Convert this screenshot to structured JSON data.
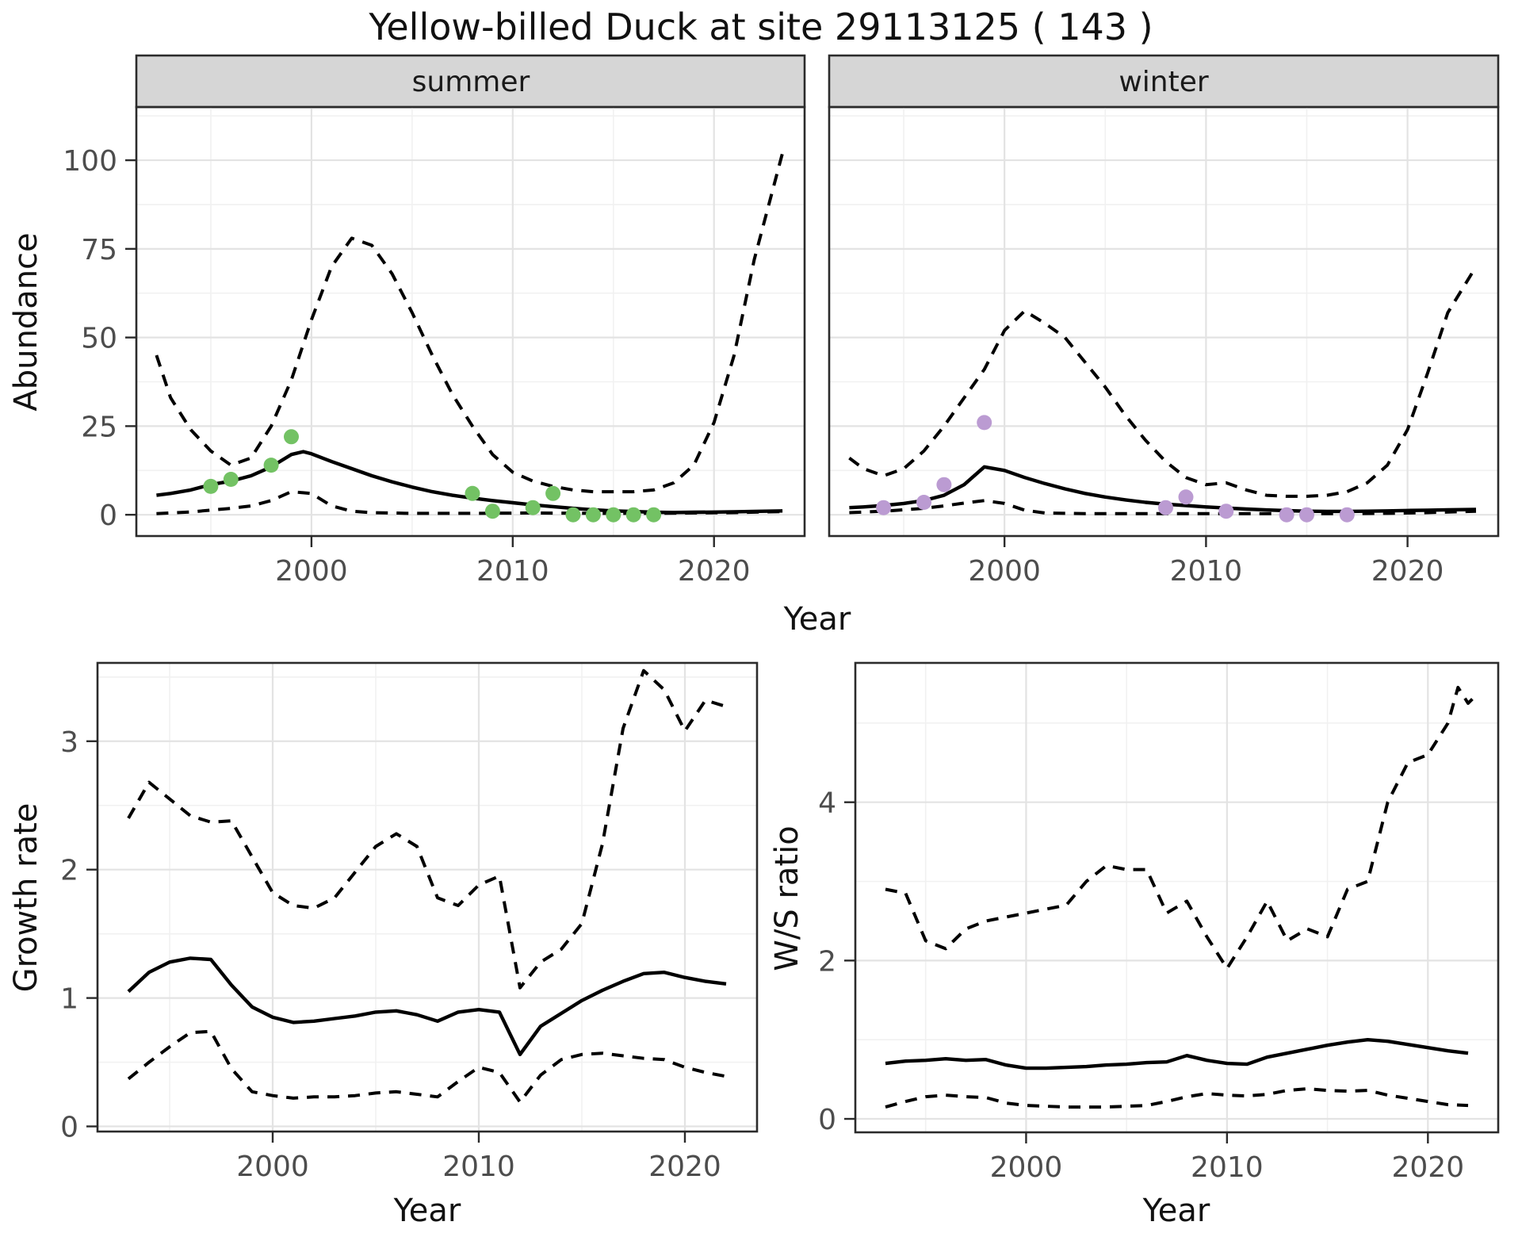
{
  "title": "Yellow-billed Duck at site 29113125 ( 143 )",
  "labels": {
    "abundance": "Abundance",
    "year": "Year",
    "growth_rate": "Growth rate",
    "ws_ratio": "W/S ratio"
  },
  "facets": {
    "summer": "summer",
    "winter": "winter"
  },
  "colors": {
    "summer_point": "#73C264",
    "winter_point": "#BB9BD2",
    "line": "#000000",
    "strip_fill": "#D6D6D6",
    "grid_major": "#E3E3E3",
    "grid_minor": "#F1F1F1",
    "panel_border": "#2B2B2B",
    "axis_text": "#4D4D4D"
  },
  "chart_data": [
    {
      "type": "line",
      "facet": "summer",
      "xlabel": "Year",
      "ylabel": "Abundance",
      "xlim": [
        1991.3,
        2024.5
      ],
      "ylim": [
        -6,
        115
      ],
      "x_ticks": [
        2000,
        2010,
        2020
      ],
      "x_minor": [
        1995,
        2005,
        2015
      ],
      "y_ticks": [
        0,
        25,
        50,
        75,
        100
      ],
      "y_minor": [
        12.5,
        37.5,
        62.5,
        87.5,
        112.5
      ],
      "grid": true,
      "point_color": "#73C264",
      "points": [
        [
          1995,
          8
        ],
        [
          1996,
          10
        ],
        [
          1998,
          14
        ],
        [
          1999,
          22
        ],
        [
          2008,
          6
        ],
        [
          2009,
          1
        ],
        [
          2011,
          2
        ],
        [
          2012,
          6
        ],
        [
          2013,
          0
        ],
        [
          2014,
          0
        ],
        [
          2015,
          0
        ],
        [
          2016,
          0
        ],
        [
          2017,
          0
        ]
      ],
      "series": [
        {
          "name": "mean",
          "line": "solid",
          "x": [
            1992.3,
            1993,
            1994,
            1995,
            1996,
            1997,
            1998,
            1999,
            1999.6,
            2000,
            2001,
            2002,
            2003,
            2004,
            2005,
            2006,
            2007,
            2008,
            2009,
            2010,
            2011,
            2012,
            2013,
            2014,
            2015,
            2016,
            2017,
            2018,
            2019,
            2020,
            2021,
            2022,
            2023.4
          ],
          "y": [
            5.5,
            6,
            7,
            8.5,
            9.5,
            11,
            13.5,
            17,
            17.8,
            17.2,
            15,
            13,
            11,
            9.3,
            7.8,
            6.5,
            5.5,
            4.7,
            4,
            3.4,
            2.8,
            2.3,
            1.8,
            1.4,
            1.1,
            0.9,
            0.7,
            0.65,
            0.7,
            0.75,
            0.85,
            0.95,
            1.1
          ]
        },
        {
          "name": "upper_ci",
          "line": "dashed",
          "x": [
            1992.3,
            1993,
            1994,
            1995,
            1996,
            1997,
            1998,
            1999,
            2000,
            2001,
            2002,
            2003,
            2004,
            2005,
            2006,
            2007,
            2008,
            2009,
            2010,
            2011,
            2012,
            2013,
            2014,
            2015,
            2016,
            2017,
            2018,
            2019,
            2020,
            2021,
            2022,
            2023.4
          ],
          "y": [
            45,
            33,
            24,
            18,
            14,
            16,
            25,
            38,
            55,
            70,
            78,
            76,
            68,
            57,
            45,
            34,
            25,
            17,
            12,
            9.5,
            8,
            7,
            6.5,
            6.5,
            6.5,
            7,
            9,
            14,
            26,
            45,
            72,
            102
          ]
        },
        {
          "name": "lower_ci",
          "line": "dashed",
          "x": [
            1992.3,
            1994,
            1996,
            1997,
            1998,
            1999,
            2000,
            2001,
            2002,
            2003,
            2005,
            2008,
            2011,
            2014,
            2017,
            2019,
            2021,
            2023.4
          ],
          "y": [
            0.3,
            0.8,
            1.8,
            2.5,
            4,
            6.5,
            6,
            2.5,
            1,
            0.6,
            0.4,
            0.4,
            0.5,
            0.4,
            0.4,
            0.5,
            0.6,
            0.9
          ]
        }
      ]
    },
    {
      "type": "line",
      "facet": "winter",
      "xlabel": "Year",
      "ylabel": "Abundance",
      "xlim": [
        1991.3,
        2024.5
      ],
      "ylim": [
        -6,
        115
      ],
      "x_ticks": [
        2000,
        2010,
        2020
      ],
      "x_minor": [
        1995,
        2005,
        2015
      ],
      "y_ticks": [
        0,
        25,
        50,
        75,
        100
      ],
      "y_minor": [
        12.5,
        37.5,
        62.5,
        87.5,
        112.5
      ],
      "grid": true,
      "point_color": "#BB9BD2",
      "points": [
        [
          1994,
          2
        ],
        [
          1996,
          3.5
        ],
        [
          1997,
          8.5
        ],
        [
          1999,
          26
        ],
        [
          2008,
          2
        ],
        [
          2009,
          5
        ],
        [
          2011,
          1
        ],
        [
          2014,
          0
        ],
        [
          2015,
          0
        ],
        [
          2017,
          0
        ]
      ],
      "series": [
        {
          "name": "mean",
          "line": "solid",
          "x": [
            1992.3,
            1993,
            1994,
            1995,
            1996,
            1997,
            1998,
            1999,
            2000,
            2001,
            2002,
            2003,
            2004,
            2005,
            2006,
            2007,
            2008,
            2009,
            2010,
            2011,
            2012,
            2013,
            2014,
            2015,
            2016,
            2017,
            2018,
            2019,
            2020,
            2021,
            2022,
            2023.4
          ],
          "y": [
            2,
            2.2,
            2.6,
            3.2,
            4,
            5.5,
            8.5,
            13.5,
            12.5,
            10.5,
            8.8,
            7.3,
            6,
            5,
            4.2,
            3.5,
            3,
            2.6,
            2.2,
            1.9,
            1.6,
            1.35,
            1.15,
            1,
            0.95,
            0.95,
            1,
            1.1,
            1.2,
            1.3,
            1.4,
            1.5
          ]
        },
        {
          "name": "upper_ci",
          "line": "dashed",
          "x": [
            1992.3,
            1993,
            1994,
            1995,
            1996,
            1997,
            1998,
            1999,
            2000,
            2001,
            2002,
            2003,
            2004,
            2005,
            2006,
            2007,
            2008,
            2009,
            2010,
            2011,
            2012,
            2013,
            2014,
            2015,
            2016,
            2017,
            2018,
            2019,
            2020,
            2021,
            2022,
            2023.4
          ],
          "y": [
            16,
            13,
            11,
            13,
            18,
            25,
            33,
            41,
            52,
            57.5,
            54,
            50,
            43,
            36,
            28,
            21,
            15,
            10.5,
            8.5,
            9,
            7,
            5.5,
            5.2,
            5.2,
            5.5,
            6.5,
            9,
            14,
            24,
            40,
            57,
            70
          ]
        },
        {
          "name": "lower_ci",
          "line": "dashed",
          "x": [
            1992.3,
            1994,
            1996,
            1997,
            1998,
            1999,
            2000,
            2001,
            2002,
            2004,
            2008,
            2012,
            2016,
            2019,
            2021,
            2023.4
          ],
          "y": [
            0.6,
            1,
            1.8,
            2.5,
            3.3,
            4,
            3.2,
            1.3,
            0.5,
            0.3,
            0.3,
            0.3,
            0.3,
            0.4,
            0.6,
            1
          ]
        }
      ]
    },
    {
      "type": "line",
      "facet": null,
      "xlabel": "Year",
      "ylabel": "Growth rate",
      "xlim": [
        1991.5,
        2023.5
      ],
      "ylim": [
        -0.04,
        3.61
      ],
      "x_ticks": [
        2000,
        2010,
        2020
      ],
      "x_minor": [
        1995,
        2005,
        2015
      ],
      "y_ticks": [
        0,
        1,
        2,
        3
      ],
      "y_minor": [
        0.5,
        1.5,
        2.5,
        3.5
      ],
      "grid": true,
      "series": [
        {
          "name": "mean",
          "line": "solid",
          "x": [
            1993,
            1994,
            1995,
            1996,
            1997,
            1998,
            1999,
            2000,
            2001,
            2002,
            2003,
            2004,
            2005,
            2006,
            2007,
            2008,
            2009,
            2010,
            2011,
            2012,
            2013,
            2014,
            2015,
            2016,
            2017,
            2018,
            2019,
            2020,
            2021,
            2022
          ],
          "y": [
            1.05,
            1.2,
            1.28,
            1.31,
            1.3,
            1.1,
            0.93,
            0.85,
            0.81,
            0.82,
            0.84,
            0.86,
            0.89,
            0.9,
            0.87,
            0.82,
            0.89,
            0.91,
            0.89,
            0.56,
            0.78,
            0.88,
            0.98,
            1.06,
            1.13,
            1.19,
            1.2,
            1.16,
            1.13,
            1.11
          ]
        },
        {
          "name": "upper_ci",
          "line": "dashed",
          "x": [
            1993,
            1994,
            1995,
            1996,
            1997,
            1998,
            1999,
            2000,
            2001,
            2002,
            2003,
            2004,
            2005,
            2006,
            2007,
            2008,
            2009,
            2010,
            2011,
            2012,
            2013,
            2014,
            2015,
            2016,
            2017,
            2018,
            2019,
            2020,
            2021,
            2022
          ],
          "y": [
            2.4,
            2.68,
            2.55,
            2.42,
            2.37,
            2.38,
            2.1,
            1.82,
            1.72,
            1.7,
            1.78,
            1.98,
            2.18,
            2.28,
            2.18,
            1.78,
            1.72,
            1.88,
            1.95,
            1.08,
            1.28,
            1.38,
            1.58,
            2.2,
            3.1,
            3.55,
            3.4,
            3.08,
            3.32,
            3.27
          ]
        },
        {
          "name": "lower_ci",
          "line": "dashed",
          "x": [
            1993,
            1994,
            1995,
            1996,
            1997,
            1998,
            1999,
            2000,
            2001,
            2002,
            2003,
            2004,
            2005,
            2006,
            2007,
            2008,
            2009,
            2010,
            2011,
            2012,
            2013,
            2014,
            2015,
            2016,
            2017,
            2018,
            2019,
            2020,
            2021,
            2022
          ],
          "y": [
            0.37,
            0.5,
            0.62,
            0.73,
            0.74,
            0.45,
            0.27,
            0.24,
            0.22,
            0.23,
            0.23,
            0.24,
            0.26,
            0.27,
            0.25,
            0.23,
            0.35,
            0.46,
            0.42,
            0.19,
            0.4,
            0.52,
            0.56,
            0.57,
            0.55,
            0.53,
            0.52,
            0.46,
            0.42,
            0.39
          ]
        }
      ]
    },
    {
      "type": "line",
      "facet": null,
      "xlabel": "Year",
      "ylabel": "W/S ratio",
      "xlim": [
        1991.5,
        2023.5
      ],
      "ylim": [
        -0.17,
        5.76
      ],
      "x_ticks": [
        2000,
        2010,
        2020
      ],
      "x_minor": [
        1995,
        2005,
        2015
      ],
      "y_ticks": [
        0,
        2,
        4
      ],
      "y_minor": [
        1,
        3,
        5
      ],
      "grid": true,
      "series": [
        {
          "name": "mean",
          "line": "solid",
          "x": [
            1993,
            1994,
            1995,
            1996,
            1997,
            1998,
            1999,
            2000,
            2001,
            2002,
            2003,
            2004,
            2005,
            2006,
            2007,
            2008,
            2009,
            2010,
            2011,
            2012,
            2013,
            2014,
            2015,
            2016,
            2017,
            2018,
            2019,
            2020,
            2021,
            2022
          ],
          "y": [
            0.7,
            0.73,
            0.74,
            0.76,
            0.74,
            0.75,
            0.68,
            0.64,
            0.64,
            0.65,
            0.66,
            0.68,
            0.69,
            0.71,
            0.72,
            0.8,
            0.74,
            0.7,
            0.69,
            0.78,
            0.83,
            0.88,
            0.93,
            0.97,
            1.0,
            0.98,
            0.94,
            0.9,
            0.86,
            0.83
          ]
        },
        {
          "name": "upper_ci",
          "line": "dashed",
          "x": [
            1993,
            1994,
            1995,
            1996,
            1997,
            1998,
            1999,
            2000,
            2001,
            2002,
            2003,
            2004,
            2005,
            2006,
            2007,
            2008,
            2009,
            2010,
            2011,
            2012,
            2013,
            2014,
            2015,
            2016,
            2017,
            2018,
            2019,
            2020,
            2021,
            2021.5,
            2022,
            2022.4
          ],
          "y": [
            2.9,
            2.85,
            2.25,
            2.15,
            2.4,
            2.5,
            2.55,
            2.6,
            2.65,
            2.7,
            3.0,
            3.2,
            3.15,
            3.15,
            2.6,
            2.75,
            2.3,
            1.9,
            2.3,
            2.75,
            2.25,
            2.4,
            2.3,
            2.9,
            3.0,
            4.0,
            4.5,
            4.6,
            5.0,
            5.45,
            5.25,
            5.35
          ]
        },
        {
          "name": "lower_ci",
          "line": "dashed",
          "x": [
            1993,
            1994,
            1995,
            1996,
            1997,
            1998,
            1999,
            2000,
            2001,
            2002,
            2003,
            2004,
            2005,
            2006,
            2007,
            2008,
            2009,
            2010,
            2011,
            2012,
            2013,
            2014,
            2015,
            2016,
            2017,
            2018,
            2019,
            2020,
            2021,
            2022
          ],
          "y": [
            0.15,
            0.22,
            0.28,
            0.3,
            0.28,
            0.27,
            0.2,
            0.17,
            0.16,
            0.15,
            0.15,
            0.15,
            0.16,
            0.17,
            0.22,
            0.28,
            0.32,
            0.3,
            0.29,
            0.31,
            0.36,
            0.38,
            0.36,
            0.35,
            0.36,
            0.3,
            0.26,
            0.22,
            0.18,
            0.17
          ]
        }
      ]
    }
  ]
}
